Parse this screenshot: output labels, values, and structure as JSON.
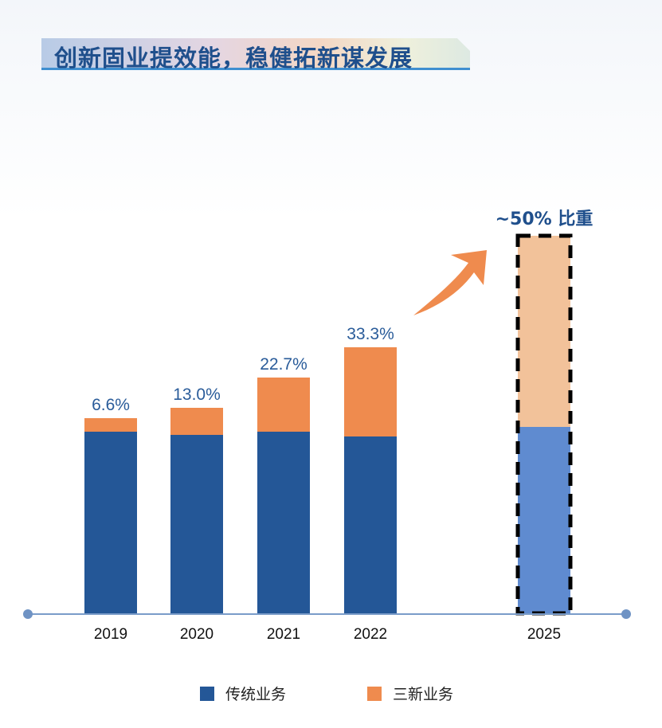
{
  "title": "创新固业提效能，稳健拓新谋发展",
  "chart_data": {
    "type": "bar",
    "stacked": true,
    "categories": [
      "2019",
      "2020",
      "2021",
      "2022",
      "2025"
    ],
    "series": [
      {
        "name": "传统业务",
        "values": [
          228,
          224,
          228,
          222,
          234
        ],
        "color": "#245797",
        "projected_color": "#5f8bd0"
      },
      {
        "name": "三新业务",
        "values": [
          17,
          34,
          68,
          112,
          240
        ],
        "color": "#ef8b4e",
        "projected_color": "#f2c29a"
      }
    ],
    "data_labels": [
      "6.6%",
      "13.0%",
      "22.7%",
      "33.3%",
      "~50% 比重"
    ],
    "projected_category": "2025",
    "ylim": [
      0,
      500
    ],
    "grid": false,
    "legend_position": "bottom",
    "annotation": "orange upward arrow toward projected 2025 bar"
  }
}
